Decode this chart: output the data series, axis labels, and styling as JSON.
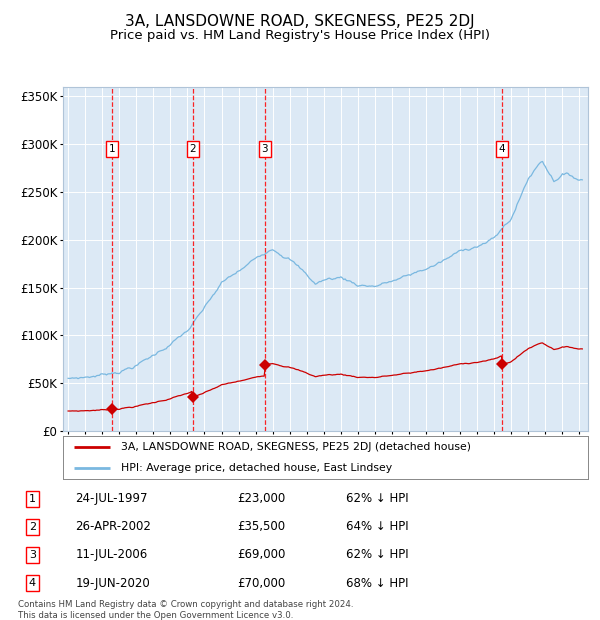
{
  "title": "3A, LANSDOWNE ROAD, SKEGNESS, PE25 2DJ",
  "subtitle": "Price paid vs. HM Land Registry's House Price Index (HPI)",
  "title_fontsize": 11,
  "subtitle_fontsize": 9.5,
  "plot_bg_color": "#dce9f5",
  "hpi_color": "#7ab8e0",
  "price_color": "#cc0000",
  "sales": [
    {
      "num": 1,
      "date_str": "24-JUL-1997",
      "year": 1997.56,
      "price": 23000,
      "pct": "62% ↓ HPI"
    },
    {
      "num": 2,
      "date_str": "26-APR-2002",
      "year": 2002.32,
      "price": 35500,
      "pct": "64% ↓ HPI"
    },
    {
      "num": 3,
      "date_str": "11-JUL-2006",
      "year": 2006.53,
      "price": 69000,
      "pct": "62% ↓ HPI"
    },
    {
      "num": 4,
      "date_str": "19-JUN-2020",
      "year": 2020.46,
      "price": 70000,
      "pct": "68% ↓ HPI"
    }
  ],
  "legend_label_price": "3A, LANSDOWNE ROAD, SKEGNESS, PE25 2DJ (detached house)",
  "legend_label_hpi": "HPI: Average price, detached house, East Lindsey",
  "footer": "Contains HM Land Registry data © Crown copyright and database right 2024.\nThis data is licensed under the Open Government Licence v3.0.",
  "ylim": [
    0,
    360000
  ],
  "xlim_start": 1994.7,
  "xlim_end": 2025.5,
  "hpi_anchors_years": [
    1995.0,
    1996.0,
    1997.0,
    1998.0,
    1999.0,
    2000.0,
    2001.0,
    2002.0,
    2003.0,
    2004.0,
    2005.5,
    2007.0,
    2008.0,
    2009.5,
    2010.0,
    2011.0,
    2012.0,
    2013.0,
    2014.0,
    2015.0,
    2016.0,
    2017.0,
    2018.0,
    2019.0,
    2020.0,
    2021.0,
    2022.0,
    2022.8,
    2023.5,
    2024.0,
    2025.0
  ],
  "hpi_anchors_vals": [
    55000,
    57000,
    60000,
    65000,
    72000,
    82000,
    95000,
    108000,
    130000,
    155000,
    172000,
    193000,
    185000,
    158000,
    162000,
    165000,
    158000,
    158000,
    163000,
    168000,
    175000,
    183000,
    192000,
    200000,
    207000,
    228000,
    270000,
    290000,
    270000,
    278000,
    272000
  ]
}
